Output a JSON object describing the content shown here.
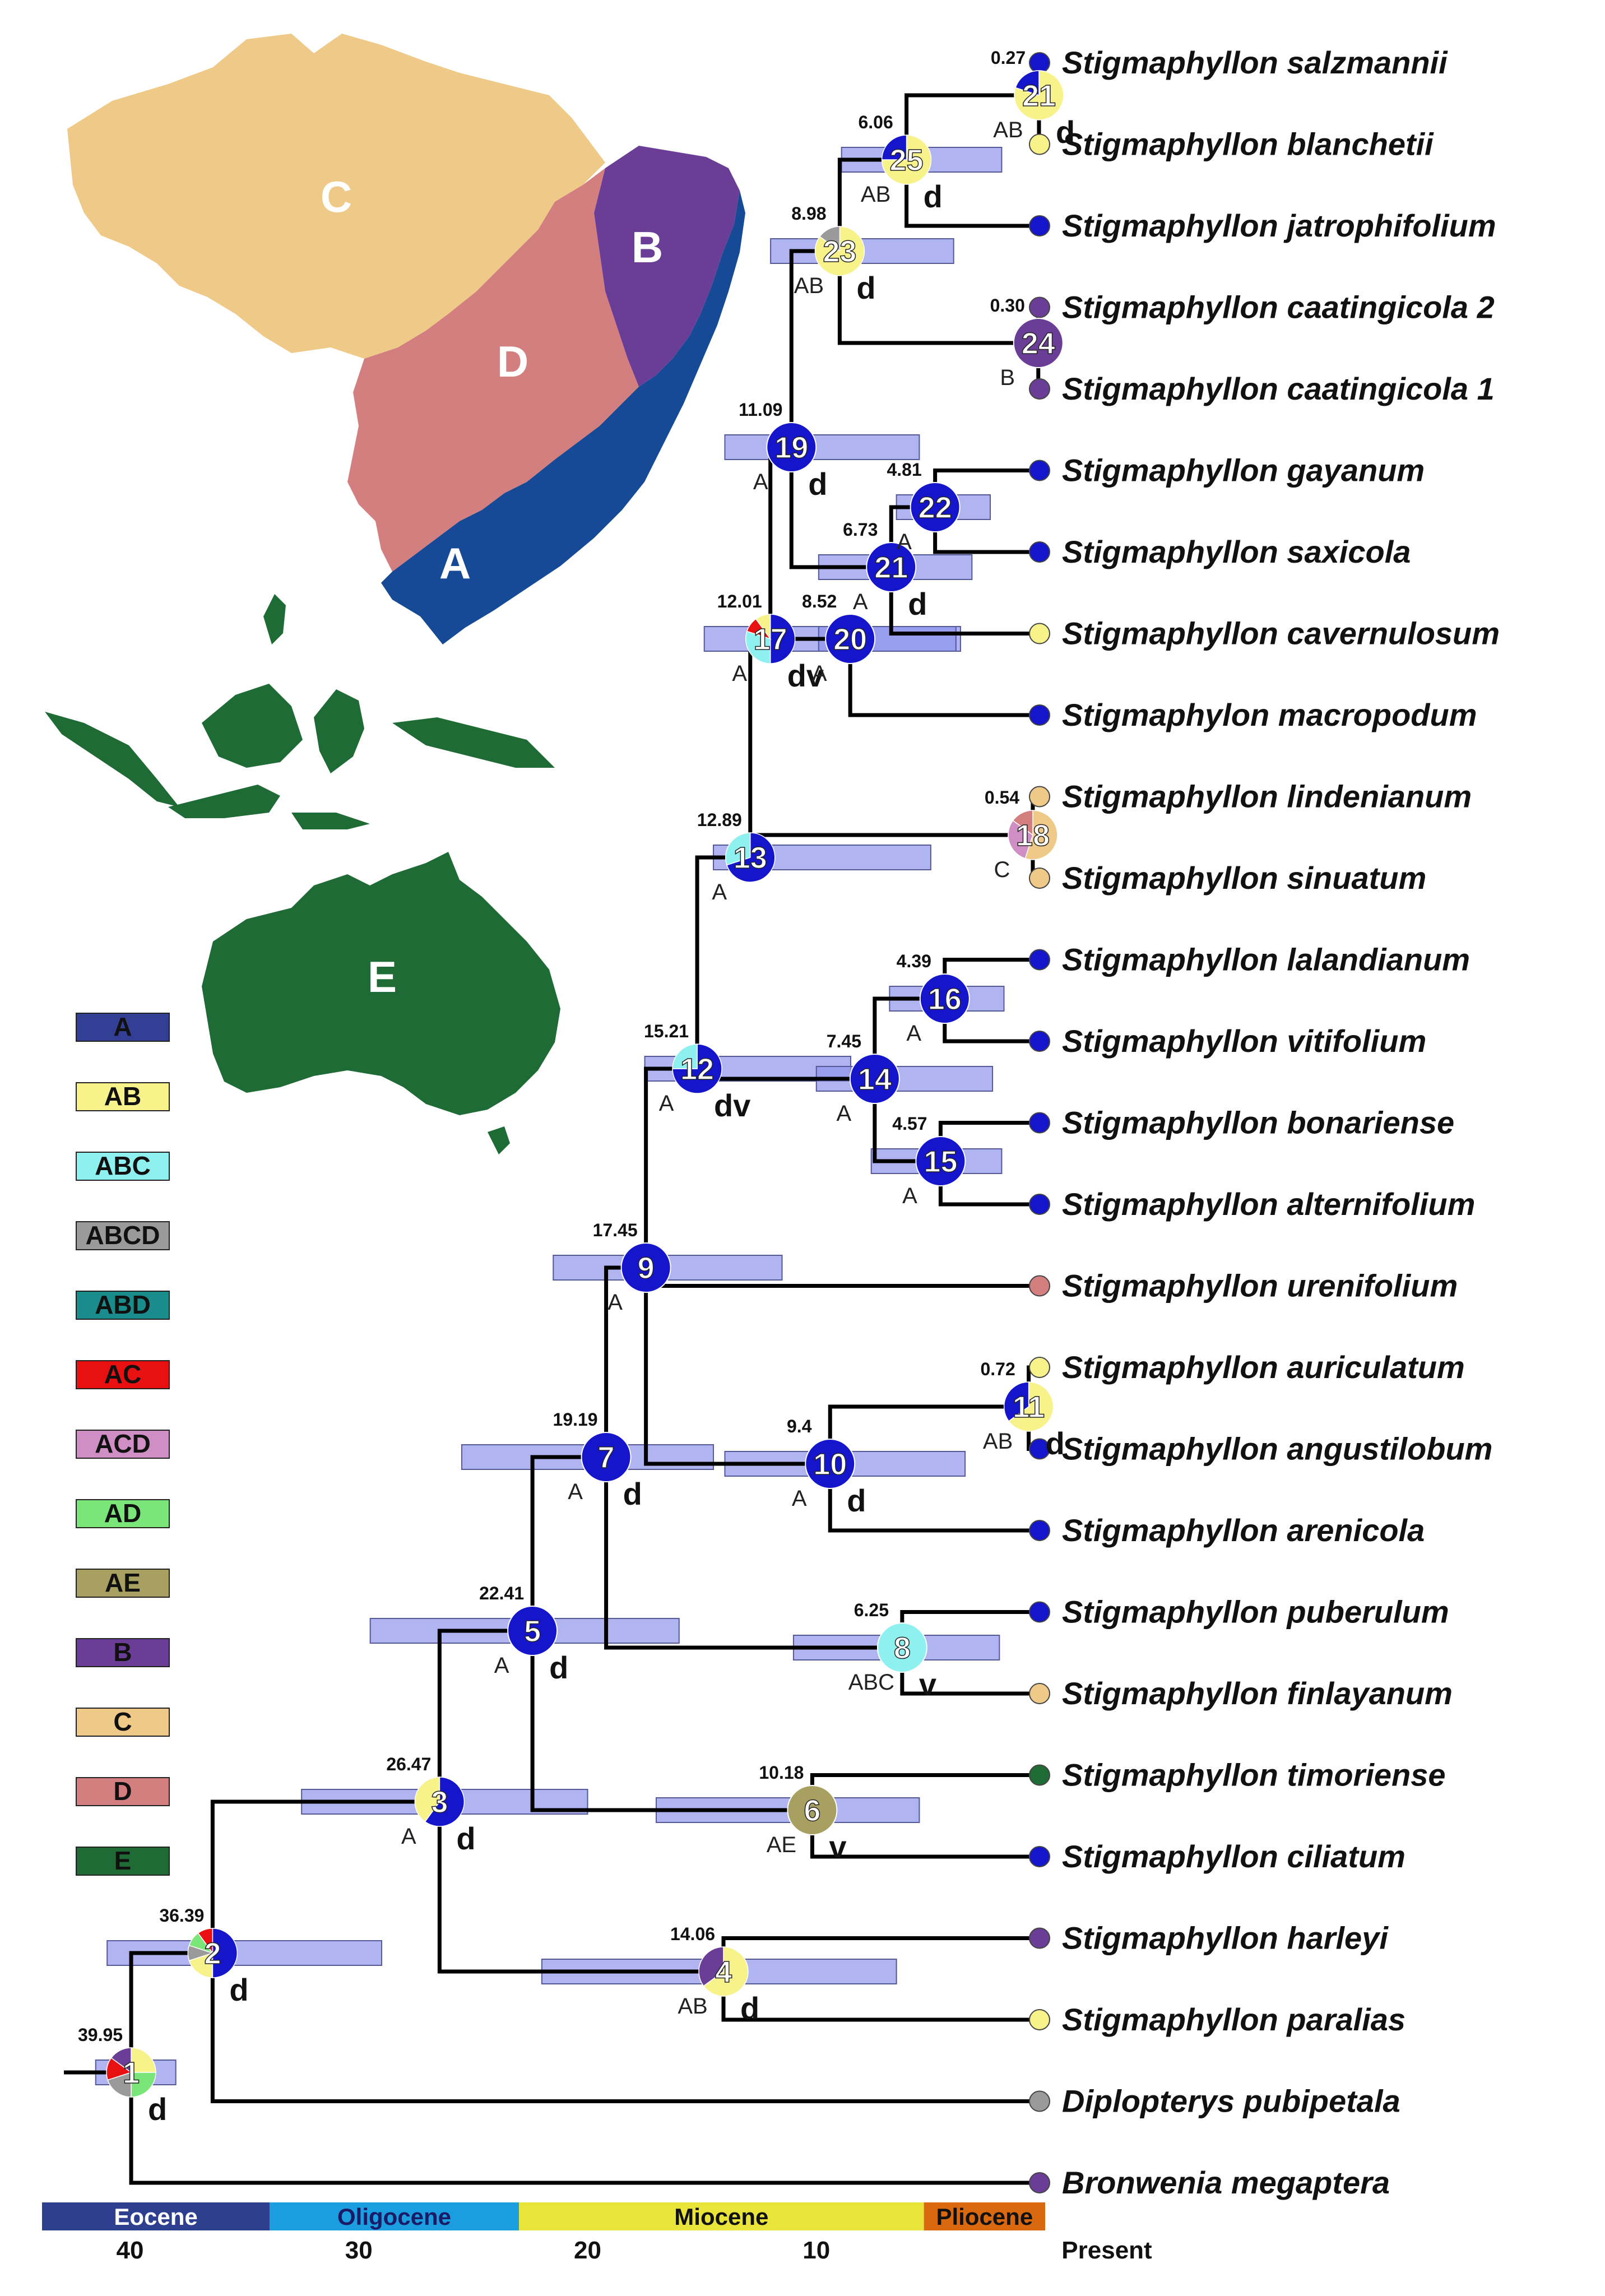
{
  "colors": {
    "A": "#1515cc",
    "AB": "#f7f28a",
    "ABC": "#8ff0f0",
    "ABCD": "#9a9a9a",
    "ABD": "#1a8c8c",
    "AC": "#e81010",
    "ACD": "#cf8fc4",
    "AD": "#7ae67a",
    "AE": "#a8a060",
    "B": "#6a3e96",
    "C": "#efc987",
    "D": "#d47f7f",
    "E": "#1f6b35"
  },
  "map": {
    "regions": [
      {
        "key": "C",
        "label": "C",
        "color": "#efc987"
      },
      {
        "key": "D",
        "label": "D",
        "color": "#d47f7f"
      },
      {
        "key": "B",
        "label": "B",
        "color": "#6a3e96"
      },
      {
        "key": "A",
        "label": "A",
        "color": "#174a96"
      },
      {
        "key": "E",
        "label": "E",
        "color": "#1f6b35"
      }
    ]
  },
  "legend": [
    {
      "label": "A",
      "color": "#333f94"
    },
    {
      "label": "AB",
      "color": "#f7f28a"
    },
    {
      "label": "ABC",
      "color": "#8ff0f0"
    },
    {
      "label": "ABCD",
      "color": "#9a9a9a"
    },
    {
      "label": "ABD",
      "color": "#1a8c8c"
    },
    {
      "label": "AC",
      "color": "#e81010"
    },
    {
      "label": "ACD",
      "color": "#cf8fc4"
    },
    {
      "label": "AD",
      "color": "#7ae67a"
    },
    {
      "label": "AE",
      "color": "#a8a060"
    },
    {
      "label": "B",
      "color": "#6a3e96"
    },
    {
      "label": "C",
      "color": "#efc987"
    },
    {
      "label": "D",
      "color": "#d47f7f"
    },
    {
      "label": "E",
      "color": "#1f6b35"
    }
  ],
  "taxa": [
    {
      "name": "Stigmaphyllon salzmannii",
      "area": "A"
    },
    {
      "name": "Stigmaphyllon blanchetii",
      "area": "AB"
    },
    {
      "name": "Stigmaphyllon jatrophifolium",
      "area": "A"
    },
    {
      "name": "Stigmaphyllon caatingicola 2",
      "area": "B"
    },
    {
      "name": "Stigmaphyllon caatingicola 1",
      "area": "B"
    },
    {
      "name": "Stigmaphyllon gayanum",
      "area": "A"
    },
    {
      "name": "Stigmaphyllon saxicola",
      "area": "A"
    },
    {
      "name": "Stigmaphyllon cavernulosum",
      "area": "AB"
    },
    {
      "name": "Stigmaphylon macropodum",
      "area": "A"
    },
    {
      "name": "Stigmaphyllon lindenianum",
      "area": "C"
    },
    {
      "name": "Stigmaphyllon sinuatum",
      "area": "C"
    },
    {
      "name": "Stigmaphyllon lalandianum",
      "area": "A"
    },
    {
      "name": "Stigmaphyllon vitifolium",
      "area": "A"
    },
    {
      "name": "Stigmaphyllon bonariense",
      "area": "A"
    },
    {
      "name": "Stigmaphyllon alternifolium",
      "area": "A"
    },
    {
      "name": "Stigmaphyllon urenifolium",
      "area": "D"
    },
    {
      "name": "Stigmaphyllon auriculatum",
      "area": "AB"
    },
    {
      "name": "Stigmaphyllon angustilobum",
      "area": "A"
    },
    {
      "name": "Stigmaphyllon arenicola",
      "area": "A"
    },
    {
      "name": "Stigmaphyllon puberulum",
      "area": "A"
    },
    {
      "name": "Stigmaphyllon finlayanum",
      "area": "C"
    },
    {
      "name": "Stigmaphyllon timoriense",
      "area": "E"
    },
    {
      "name": "Stigmaphyllon ciliatum",
      "area": "A"
    },
    {
      "name": "Stigmaphyllon harleyi",
      "area": "B"
    },
    {
      "name": "Stigmaphyllon paralias",
      "area": "AB"
    },
    {
      "name": "Diplopterys pubipetala",
      "area": "ABCD"
    },
    {
      "name": "Bronwenia megaptera",
      "area": "B"
    }
  ],
  "nodes": [
    {
      "id": "1",
      "age": "39.95",
      "ma": 39.95,
      "hpd": [
        41.5,
        38.0
      ],
      "area": "",
      "event": "d",
      "children": [
        "2",
        "T26"
      ],
      "pie": [
        [
          "AB",
          0.25
        ],
        [
          "AD",
          0.25
        ],
        [
          "ABCD",
          0.2
        ],
        [
          "AC",
          0.15
        ],
        [
          "B",
          0.15
        ]
      ]
    },
    {
      "id": "2",
      "age": "36.39",
      "ma": 36.39,
      "hpd": [
        41.0,
        29.0
      ],
      "area": "",
      "event": "d",
      "children": [
        "3",
        "T25"
      ],
      "pie": [
        [
          "A",
          0.5
        ],
        [
          "AB",
          0.2
        ],
        [
          "ABCD",
          0.1
        ],
        [
          "AD",
          0.1
        ],
        [
          "AC",
          0.1
        ]
      ]
    },
    {
      "id": "3",
      "age": "26.47",
      "ma": 26.47,
      "hpd": [
        32.5,
        20.0
      ],
      "area": "A",
      "event": "d",
      "children": [
        "5",
        "4"
      ],
      "pie": [
        [
          "A",
          0.6
        ],
        [
          "AB",
          0.4
        ]
      ]
    },
    {
      "id": "4",
      "age": "14.06",
      "ma": 14.06,
      "hpd": [
        22.0,
        6.5
      ],
      "area": "AB",
      "event": "d",
      "children": [
        "T23",
        "T24"
      ],
      "pie": [
        [
          "AB",
          0.65
        ],
        [
          "B",
          0.35
        ]
      ]
    },
    {
      "id": "5",
      "age": "22.41",
      "ma": 22.41,
      "hpd": [
        29.5,
        16.0
      ],
      "area": "A",
      "event": "d",
      "children": [
        "7",
        "6"
      ],
      "pie": [
        [
          "A",
          1.0
        ]
      ]
    },
    {
      "id": "6",
      "age": "10.18",
      "ma": 10.18,
      "hpd": [
        17.0,
        5.5
      ],
      "area": "AE",
      "event": "v",
      "children": [
        "T21",
        "T22"
      ],
      "pie": [
        [
          "AE",
          1.0
        ]
      ]
    },
    {
      "id": "7",
      "age": "19.19",
      "ma": 19.19,
      "hpd": [
        25.5,
        14.5
      ],
      "area": "A",
      "event": "d",
      "children": [
        "9",
        "8"
      ],
      "pie": [
        [
          "A",
          1.0
        ]
      ]
    },
    {
      "id": "8",
      "age": "6.25",
      "ma": 6.25,
      "hpd": [
        11.0,
        2.0
      ],
      "area": "ABC",
      "event": "v",
      "children": [
        "T19",
        "T20"
      ],
      "pie": [
        [
          "ABC",
          1.0
        ]
      ]
    },
    {
      "id": "9",
      "age": "17.45",
      "ma": 17.45,
      "hpd": [
        21.5,
        11.5
      ],
      "area": "A",
      "event": "",
      "children": [
        "12",
        "10",
        "T15"
      ],
      "pie": [
        [
          "A",
          1.0
        ]
      ]
    },
    {
      "id": "10",
      "age": "9.4",
      "ma": 9.4,
      "hpd": [
        14.0,
        3.5
      ],
      "area": "A",
      "event": "d",
      "children": [
        "11",
        "T18"
      ],
      "pie": [
        [
          "A",
          1.0
        ]
      ]
    },
    {
      "id": "11",
      "age": "0.72",
      "ma": 0.72,
      "hpd": [
        1.3,
        0.2
      ],
      "area": "AB",
      "event": "d",
      "children": [
        "T16",
        "T17"
      ],
      "pie": [
        [
          "AB",
          0.65
        ],
        [
          "A",
          0.35
        ]
      ]
    },
    {
      "id": "12",
      "age": "15.21",
      "ma": 15.21,
      "hpd": [
        17.5,
        8.5
      ],
      "area": "A",
      "event": "dv",
      "children": [
        "13",
        "14"
      ],
      "pie": [
        [
          "A",
          0.75
        ],
        [
          "ABC",
          0.25
        ]
      ]
    },
    {
      "id": "13",
      "age": "12.89",
      "ma": 12.89,
      "hpd": [
        14.5,
        5.0
      ],
      "area": "A",
      "event": "",
      "children": [
        "17",
        "18"
      ],
      "pie": [
        [
          "A",
          0.7
        ],
        [
          "ABC",
          0.3
        ]
      ]
    },
    {
      "id": "14",
      "age": "7.45",
      "ma": 7.45,
      "hpd": [
        10.0,
        2.3
      ],
      "area": "A",
      "event": "",
      "children": [
        "16",
        "15"
      ],
      "pie": [
        [
          "A",
          1.0
        ]
      ]
    },
    {
      "id": "15",
      "age": "4.57",
      "ma": 4.57,
      "hpd": [
        7.6,
        1.9
      ],
      "area": "A",
      "event": "",
      "children": [
        "T13",
        "T14"
      ],
      "pie": [
        [
          "A",
          1.0
        ]
      ]
    },
    {
      "id": "16",
      "age": "4.39",
      "ma": 4.39,
      "hpd": [
        6.8,
        1.8
      ],
      "area": "A",
      "event": "",
      "children": [
        "T11",
        "T12"
      ],
      "pie": [
        [
          "A",
          1.0
        ]
      ]
    },
    {
      "id": "17",
      "age": "12.01",
      "ma": 12.01,
      "hpd": [
        14.9,
        3.7
      ],
      "area": "A",
      "event": "dv",
      "children": [
        "19",
        "20"
      ],
      "pie": [
        [
          "A",
          0.5
        ],
        [
          "ABC",
          0.3
        ],
        [
          "AC",
          0.1
        ],
        [
          "AB",
          0.1
        ]
      ]
    },
    {
      "id": "18",
      "age": "0.54",
      "ma": 0.54,
      "hpd": [
        0.9,
        0.2
      ],
      "area": "C",
      "event": "",
      "children": [
        "T9",
        "T10"
      ],
      "pie": [
        [
          "C",
          0.55
        ],
        [
          "ACD",
          0.3
        ],
        [
          "D",
          0.15
        ]
      ]
    },
    {
      "id": "19",
      "age": "11.09",
      "ma": 11.09,
      "hpd": [
        14.0,
        5.5
      ],
      "area": "A",
      "event": "d",
      "children": [
        "23",
        "T5"
      ],
      "pie": [
        [
          "A",
          1.0
        ]
      ]
    },
    {
      "id": "20",
      "age": "8.52",
      "ma": 8.52,
      "hpd": [
        9.9,
        3.9
      ],
      "area": "A",
      "event": "",
      "children": [
        "21",
        "T8"
      ],
      "pie": [
        [
          "A",
          1.0
        ]
      ]
    },
    {
      "id": "21",
      "age": "6.73",
      "ma": 6.73,
      "hpd": [
        9.9,
        3.2
      ],
      "area": "A",
      "event": "d",
      "children": [
        "22",
        "T7"
      ],
      "pie": [
        [
          "A",
          1.0
        ]
      ]
    },
    {
      "id": "22",
      "age": "4.81",
      "ma": 4.81,
      "hpd": [
        6.5,
        2.4
      ],
      "area": "A",
      "event": "",
      "children": [
        "T5b",
        "T6"
      ],
      "pie": [
        [
          "A",
          1.0
        ]
      ]
    },
    {
      "id": "23",
      "age": "8.98",
      "ma": 8.98,
      "hpd": [
        12.0,
        4.0
      ],
      "area": "AB",
      "event": "d",
      "children": [
        "25",
        "24"
      ],
      "pie": [
        [
          "AB",
          0.85
        ],
        [
          "ABCD",
          0.15
        ]
      ]
    },
    {
      "id": "24",
      "age": "0.30",
      "ma": 0.3,
      "hpd": [
        0.5,
        0.1
      ],
      "area": "B",
      "event": "",
      "children": [
        "T3",
        "T4"
      ],
      "pie": [
        [
          "B",
          1.0
        ]
      ]
    },
    {
      "id": "25",
      "age": "6.06",
      "ma": 6.06,
      "hpd": [
        8.9,
        1.9
      ],
      "area": "AB",
      "event": "d",
      "children": [
        "21b",
        "T2"
      ],
      "pie": [
        [
          "AB",
          0.75
        ],
        [
          "A",
          0.25
        ]
      ]
    },
    {
      "id": "21b",
      "age": "0.27",
      "ma": 0.27,
      "hpd": [
        0.5,
        0.1
      ],
      "area": "AB",
      "event": "d",
      "children": [
        "T0",
        "T1"
      ],
      "pie": [
        [
          "AB",
          0.8
        ],
        [
          "A",
          0.2
        ]
      ]
    }
  ],
  "node_labels": {
    "21b": "21"
  },
  "time_scale": {
    "eras": [
      {
        "name": "Eocene",
        "from": 44.0,
        "to": 33.9,
        "color": "#2e3f8f",
        "text": "#ffffff"
      },
      {
        "name": "Oligocene",
        "from": 33.9,
        "to": 23.0,
        "color": "#1b9ee0",
        "text": "#1a1a66"
      },
      {
        "name": "Miocene",
        "from": 23.0,
        "to": 5.3,
        "color": "#e8e43a",
        "text": "#111111"
      },
      {
        "name": "Pliocene",
        "from": 5.3,
        "to": 0.0,
        "color": "#d9680f",
        "text": "#111111"
      }
    ],
    "ticks": [
      {
        "label": "40",
        "ma": 40
      },
      {
        "label": "30",
        "ma": 30
      },
      {
        "label": "20",
        "ma": 20
      },
      {
        "label": "10",
        "ma": 10
      },
      {
        "label": "Present",
        "ma": 0
      }
    ]
  }
}
